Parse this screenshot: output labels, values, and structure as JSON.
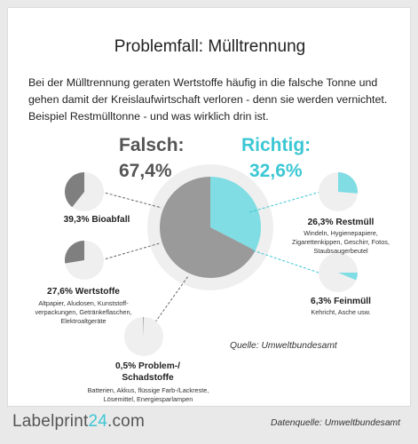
{
  "title": "Problemfall: Mülltrennung",
  "intro": "Bei der Mülltrennung geraten Wertstoffe häufig in die falsche Tonne und gehen damit der Kreislaufwirtschaft verloren - denn sie werden vernichtet. Beispiel Restmülltonne - und was wirklich drin ist.",
  "falsch": {
    "label": "Falsch:",
    "pct": "67,4%"
  },
  "richtig": {
    "label": "Richtig:",
    "pct": "32,6%"
  },
  "quelle": "Quelle: Umweltbundesamt",
  "footer": {
    "logo_a": "Labelprint",
    "logo_num": "24",
    "logo_b": ".com",
    "datenquelle": "Datenquelle: Umweltbundesamt"
  },
  "colors": {
    "wrong": "#9a9a9a",
    "wrong_dark": "#7f7f7f",
    "right": "#7fdde3",
    "ring": "#efefef",
    "accent": "#3cc7d4"
  },
  "chart_data": {
    "type": "pie",
    "categories": [
      "Richtig",
      "Falsch"
    ],
    "values": [
      32.6,
      67.4
    ],
    "segments": [
      {
        "title": "39,3% Bioabfall",
        "value": 39.3,
        "group": "Falsch",
        "desc": ""
      },
      {
        "title": "27,6% Wertstoffe",
        "value": 27.6,
        "group": "Falsch",
        "desc": "Altpapier, Aludosen, Kunststoff-verpackungen, Getränkeflaschen, Elektroaltgeräte"
      },
      {
        "title": "0,5% Problem-/ Schadstoffe",
        "value": 0.5,
        "group": "Falsch",
        "desc": "Batterien, Akkus, flüssige Farb-/Lackreste, Lösemittel, Energiesparlampen"
      },
      {
        "title": "26,3% Restmüll",
        "value": 26.3,
        "group": "Richtig",
        "desc": "Windeln, Hygienepapiere, Zigarettenkippen, Geschirr, Fotos, Staubsaugerbeutel"
      },
      {
        "title": "6,3% Feinmüll",
        "value": 6.3,
        "group": "Richtig",
        "desc": "Kehricht, Asche usw."
      }
    ]
  }
}
